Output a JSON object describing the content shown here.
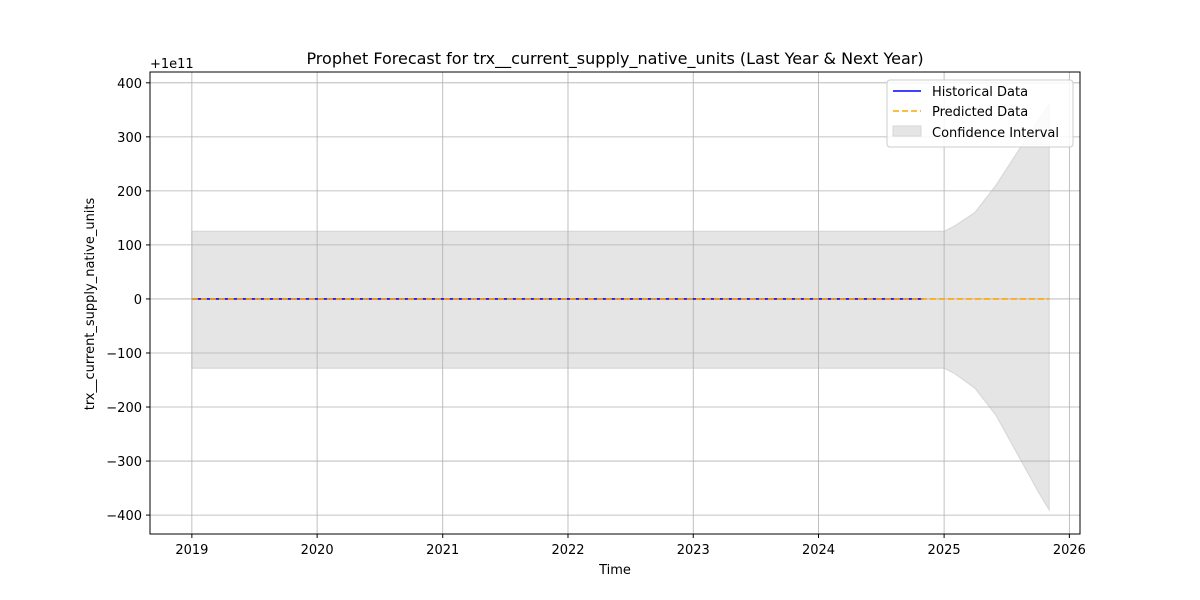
{
  "chart_data": {
    "type": "line",
    "title": "Prophet Forecast for trx__current_supply_native_units (Last Year & Next Year)",
    "xlabel": "Time",
    "ylabel": "trx__current_supply_native_units",
    "offset_label": "+1e11",
    "xlim": [
      "2018-09-01",
      "2026-02-01"
    ],
    "ylim": [
      -435,
      420
    ],
    "x_ticks": [
      "2019",
      "2020",
      "2021",
      "2022",
      "2023",
      "2024",
      "2025",
      "2026"
    ],
    "y_ticks": [
      -400,
      -300,
      -200,
      -100,
      0,
      100,
      200,
      300,
      400
    ],
    "y_tick_labels": [
      "−400",
      "−300",
      "−200",
      "−100",
      "0",
      "100",
      "200",
      "300",
      "400"
    ],
    "grid": true,
    "legend_position": "top-right",
    "series": [
      {
        "name": "Historical Data",
        "color": "#0000ff",
        "style": "solid",
        "x": [
          "2019-01-01",
          "2024-11-01"
        ],
        "values": [
          0,
          0
        ]
      },
      {
        "name": "Predicted Data",
        "color": "#ffa500",
        "style": "dashed",
        "x": [
          "2019-01-01",
          "2025-11-03"
        ],
        "values": [
          0,
          0
        ]
      },
      {
        "name": "Confidence Interval",
        "color": "#e5e5e5",
        "type": "band",
        "x": [
          "2019-01-01",
          "2025-01-01",
          "2025-02-01",
          "2025-04-01",
          "2025-06-01",
          "2025-08-01",
          "2025-10-01",
          "2025-11-03"
        ],
        "upper": [
          125,
          125,
          135,
          160,
          210,
          270,
          330,
          360
        ],
        "lower": [
          -128,
          -128,
          -138,
          -165,
          -215,
          -285,
          -355,
          -390
        ]
      }
    ]
  }
}
